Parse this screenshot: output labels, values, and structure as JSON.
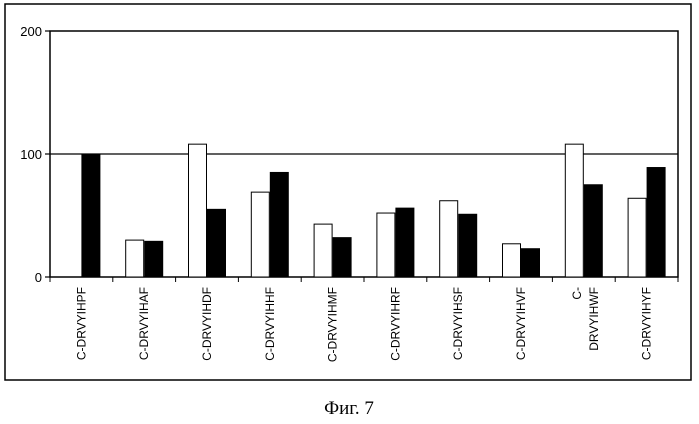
{
  "caption": "Фиг. 7",
  "chart_data": {
    "type": "bar",
    "title": "",
    "xlabel": "",
    "ylabel": "",
    "ylim": [
      0,
      200
    ],
    "yticks": [
      "0",
      "100",
      "200"
    ],
    "gridlines": [
      100
    ],
    "legend": "none",
    "categories": [
      "C-DRVYIHPF",
      "C-DRVYIHAF",
      "C-DRVYIHDF",
      "C-DRVYIHHF",
      "C-DRVYIHMF",
      "C-DRVYIHRF",
      "C-DRVYIHSF",
      "C-DRVYIHVF",
      "C- DRVYIHWF",
      "C-DRVYIHYF"
    ],
    "series": [
      {
        "fill": "#ffffff",
        "values": [
          0,
          30,
          108,
          69,
          43,
          52,
          62,
          27,
          108,
          64
        ]
      },
      {
        "fill": "#000000",
        "values": [
          100,
          29,
          55,
          85,
          32,
          56,
          51,
          23,
          75,
          89
        ]
      }
    ]
  }
}
